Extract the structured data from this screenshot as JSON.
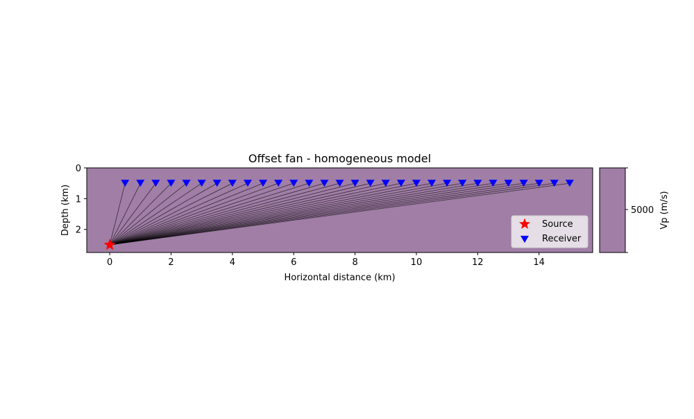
{
  "chart_data": {
    "type": "scatter",
    "title": "Offset fan - homogeneous model",
    "xlabel": "Horizontal distance (km)",
    "ylabel": "Depth (km)",
    "xlim": [
      -0.75,
      15.75
    ],
    "ylim": [
      2.75,
      0
    ],
    "y_inverted": true,
    "xticks": [
      0,
      2,
      4,
      6,
      8,
      10,
      12,
      14
    ],
    "yticks": [
      0,
      1,
      2
    ],
    "background_color": "#a07ea6",
    "grid": false,
    "source": {
      "name": "Source",
      "x": 0,
      "y": 2.5,
      "color": "#ff0000",
      "marker": "star"
    },
    "receivers": {
      "name": "Receiver",
      "x_start": 0.5,
      "x_end": 15,
      "x_step": 0.5,
      "y": 0.5,
      "color": "#0000ff",
      "marker": "triangle-down"
    },
    "rays": {
      "color": "#000000",
      "opacity": 0.6,
      "from": "source",
      "to": "each receiver"
    },
    "legend": {
      "placement": "lower-right",
      "entries": [
        "Source",
        "Receiver"
      ]
    },
    "colorbar": {
      "label": "Vp (m/s)",
      "tick_labels": [
        "5000"
      ],
      "color": "#a07ea6"
    }
  }
}
